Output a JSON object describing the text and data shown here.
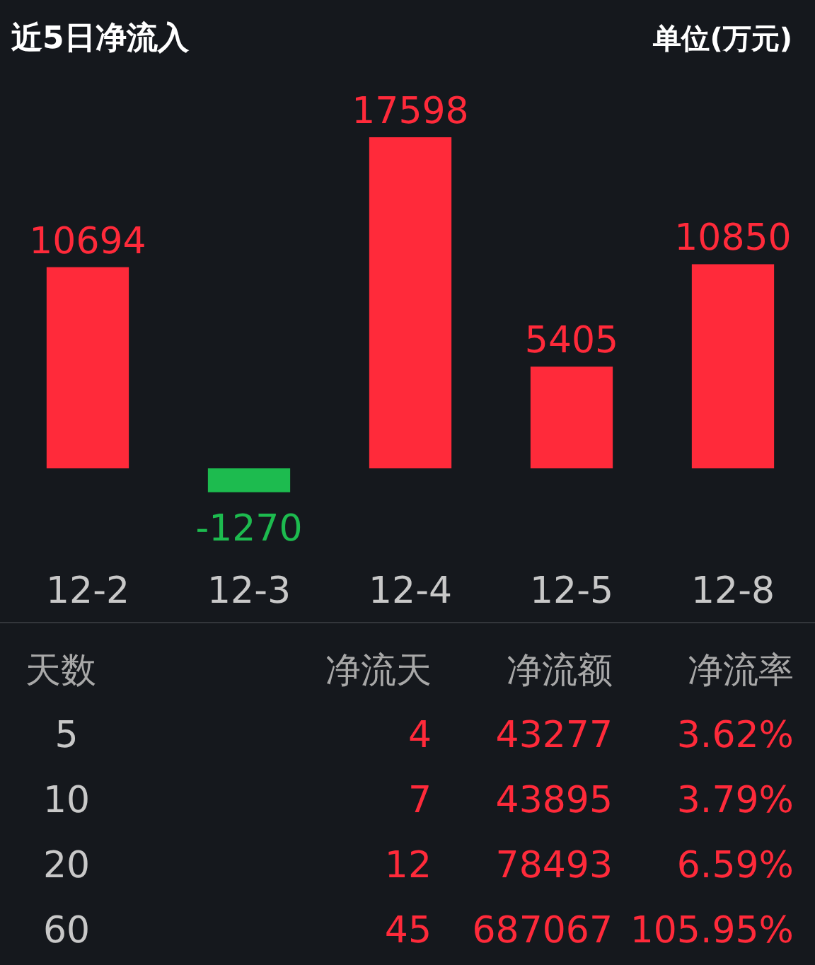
{
  "chart_data": [
    {
      "type": "bar",
      "title": "近5日净流入",
      "subtitle": "单位(万元)",
      "categories": [
        "12-2",
        "12-3",
        "12-4",
        "12-5",
        "12-8"
      ],
      "values": [
        10694,
        -1270,
        17598,
        5405,
        10850
      ],
      "colors": [
        "#ff2a3a",
        "#1dbb4f",
        "#ff2a3a",
        "#ff2a3a",
        "#ff2a3a"
      ],
      "data_labels": true
    },
    {
      "type": "other",
      "xlabel": "天数",
      "data_labels": true,
      "categories": [
        "5",
        "10",
        "20",
        "60"
      ],
      "series": [
        {
          "name": "净流天",
          "values": [
            4,
            7,
            12,
            45
          ]
        },
        {
          "name": "净流额",
          "values": [
            43277,
            43895,
            78493,
            687067
          ]
        },
        {
          "name": "净流率",
          "values": [
            3.62,
            3.79,
            6.59,
            105.95
          ],
          "value_labels": [
            "3.62%",
            "3.79%",
            "6.59%",
            "105.95%"
          ]
        }
      ]
    }
  ]
}
